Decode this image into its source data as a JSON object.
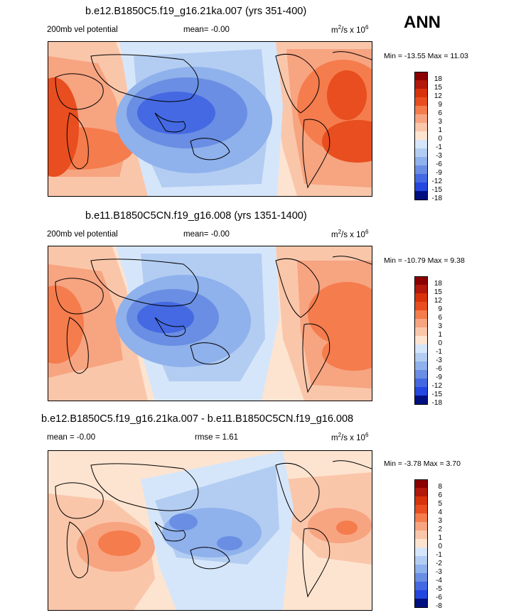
{
  "page": {
    "season_label": "ANN"
  },
  "panels": [
    {
      "title": "b.e12.B1850C5.f19_g16.21ka.007 (yrs 351-400)",
      "left_label": "200mb vel potential",
      "mean_label": "mean=",
      "mean_value": "-0.00",
      "rmse_label": "",
      "rmse_value": "",
      "units_main": "m",
      "units_sup1": "2",
      "units_mid": "/s x 10",
      "units_sup2": "6",
      "minmax": "Min = -13.55 Max =  11.03"
    },
    {
      "title": "b.e11.B1850C5CN.f19_g16.008 (yrs 1351-1400)",
      "left_label": "200mb vel potential",
      "mean_label": "mean=",
      "mean_value": "-0.00",
      "rmse_label": "",
      "rmse_value": "",
      "units_main": "m",
      "units_sup1": "2",
      "units_mid": "/s x 10",
      "units_sup2": "6",
      "minmax": "Min = -10.79 Max =   9.38"
    },
    {
      "title": "b.e12.B1850C5.f19_g16.21ka.007 - b.e11.B1850C5CN.f19_g16.008",
      "left_label": "",
      "mean_label": "mean =",
      "mean_value": "-0.00",
      "rmse_label": "rmse =",
      "rmse_value": "1.61",
      "units_main": "m",
      "units_sup1": "2",
      "units_mid": "/s x 10",
      "units_sup2": "6",
      "minmax": "Min =  -3.78 Max =   3.70"
    }
  ],
  "colors": {
    "levels_main": [
      "#8b0000",
      "#b2180c",
      "#d8320c",
      "#e84e1f",
      "#f57c4d",
      "#f7a481",
      "#fac6aa",
      "#fde4d0",
      "#d6e6fa",
      "#b3cdf2",
      "#8fb1ec",
      "#6a8ee3",
      "#4469e2",
      "#2447e0",
      "#1626b8",
      "#001080"
    ],
    "levels_diff": [
      "#8b0000",
      "#b2180c",
      "#d8320c",
      "#e84e1f",
      "#f57c4d",
      "#f7a481",
      "#fac6aa",
      "#fde4d0",
      "#d6e6fa",
      "#b3cdf2",
      "#8fb1ec",
      "#6a8ee3",
      "#4469e2",
      "#2447e0",
      "#1626b8",
      "#001080"
    ]
  },
  "chart_data": [
    {
      "type": "heatmap",
      "title": "b.e12.B1850C5.f19_g16.21ka.007 (yrs 351-400)",
      "variable": "200mb vel potential",
      "units": "m2/s x 10^6",
      "mean": -0.0,
      "min": -13.55,
      "max": 11.03,
      "contour_levels": [
        18,
        15,
        12,
        9,
        6,
        3,
        1,
        0,
        -1,
        -3,
        -6,
        -9,
        -12,
        -15,
        -18
      ],
      "pattern": "negative center over western Pacific / maritime continent; positive over Africa and Atlantic/South America"
    },
    {
      "type": "heatmap",
      "title": "b.e11.B1850C5CN.f19_g16.008 (yrs 1351-1400)",
      "variable": "200mb vel potential",
      "units": "m2/s x 10^6",
      "mean": -0.0,
      "min": -10.79,
      "max": 9.38,
      "contour_levels": [
        18,
        15,
        12,
        9,
        6,
        3,
        1,
        0,
        -1,
        -3,
        -6,
        -9,
        -12,
        -15,
        -18
      ],
      "pattern": "negative center over western Pacific / maritime continent; positive over Africa and Atlantic"
    },
    {
      "type": "heatmap",
      "title": "b.e12.B1850C5.f19_g16.21ka.007 - b.e11.B1850C5CN.f19_g16.008",
      "units": "m2/s x 10^6",
      "mean": -0.0,
      "rmse": 1.61,
      "min": -3.78,
      "max": 3.7,
      "contour_levels": [
        8,
        6,
        5,
        4,
        3,
        2,
        1,
        0,
        -1,
        -2,
        -3,
        -4,
        -5,
        -6,
        -8
      ],
      "pattern": "negative over central/western Pacific; positive over Indian Ocean/Africa and Atlantic"
    }
  ]
}
